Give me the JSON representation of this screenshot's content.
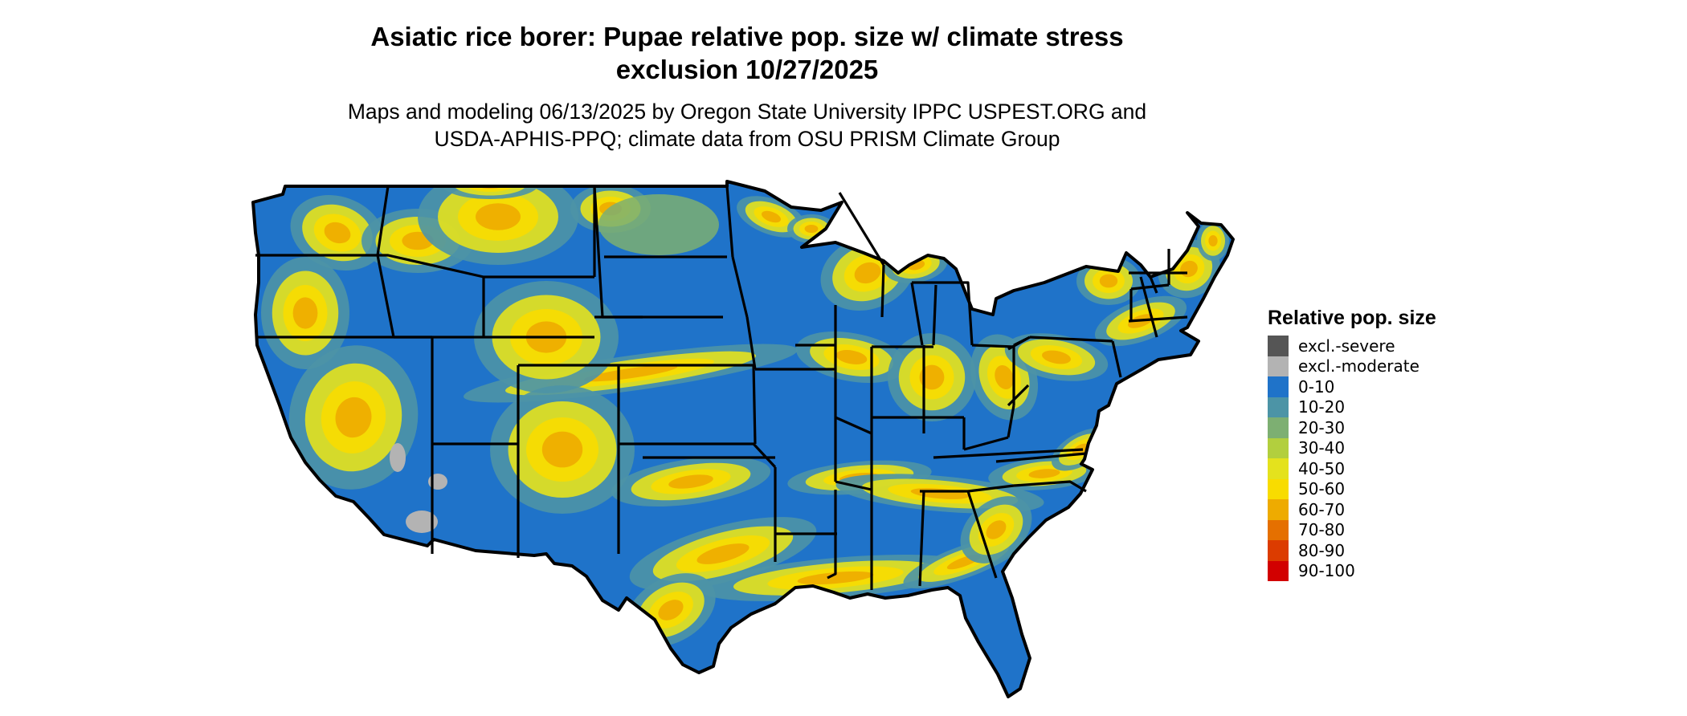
{
  "title": {
    "line1": "Asiatic rice borer: Pupae relative pop. size w/ climate stress",
    "line2": "exclusion 10/27/2025"
  },
  "subtitle": {
    "line1": "Maps and modeling 06/13/2025 by Oregon State University IPPC USPEST.ORG and",
    "line2": "USDA-APHIS-PPQ; climate data from OSU PRISM Climate Group"
  },
  "legend": {
    "title": "Relative pop. size",
    "items": [
      {
        "label": "excl.-severe",
        "color": "#555555"
      },
      {
        "label": "excl.-moderate",
        "color": "#b3b3b3"
      },
      {
        "label": "0-10",
        "color": "#1f73c9"
      },
      {
        "label": "10-20",
        "color": "#4c94a6"
      },
      {
        "label": "20-30",
        "color": "#7daf72"
      },
      {
        "label": "30-40",
        "color": "#b2cf3e"
      },
      {
        "label": "40-50",
        "color": "#e4e21d"
      },
      {
        "label": "50-60",
        "color": "#f8dc00"
      },
      {
        "label": "60-70",
        "color": "#eeab00"
      },
      {
        "label": "70-80",
        "color": "#e57000"
      },
      {
        "label": "80-90",
        "color": "#dc3c00"
      },
      {
        "label": "90-100",
        "color": "#d20000"
      }
    ]
  },
  "map": {
    "region": "Contiguous United States",
    "base_color": "#1f73c9",
    "border_color": "#000000"
  }
}
